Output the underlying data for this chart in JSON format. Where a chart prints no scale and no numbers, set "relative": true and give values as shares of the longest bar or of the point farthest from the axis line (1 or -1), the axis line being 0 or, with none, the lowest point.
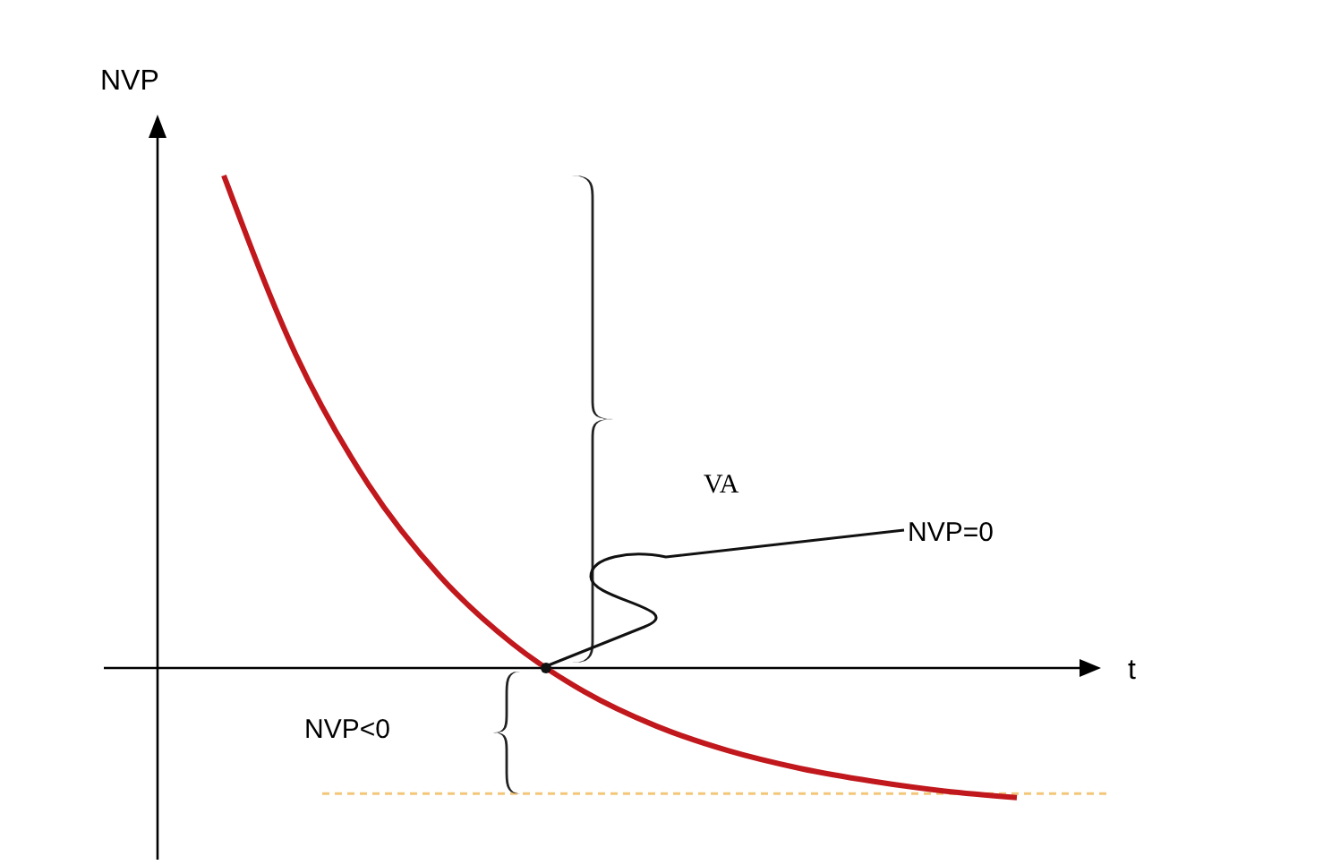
{
  "chart_data": {
    "type": "line",
    "relative": true,
    "xlabel": "t",
    "ylabel": "NVP",
    "categories": [
      null,
      null,
      null,
      null,
      null,
      null,
      null,
      null,
      null,
      null,
      null,
      null
    ],
    "series": [
      {
        "color": "#c0181c",
        "values": [
          1.0,
          0.636,
          0.374,
          0.186,
          0.05,
          -0.048,
          -0.118,
          -0.168,
          -0.204,
          -0.23,
          -0.25,
          -0.263
        ]
      }
    ],
    "ref_lines": [
      {
        "axis": "y",
        "value": -0.255,
        "color": "#f3c77a",
        "line_style": "dashed"
      }
    ],
    "annotations": [
      "VA",
      "NVP=0",
      "NVP<0"
    ],
    "marker": "none",
    "line_style": "solid"
  }
}
